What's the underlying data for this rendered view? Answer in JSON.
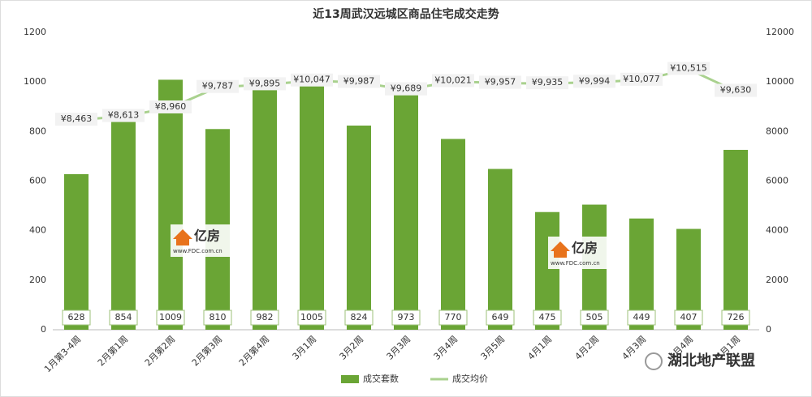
{
  "chart_data": {
    "type": "combo",
    "title": "近13周武汉远城区商品住宅成交走势",
    "categories": [
      "1月第3-4周",
      "2月第1周",
      "2月第2周",
      "2月第3周",
      "2月第4周",
      "3月1周",
      "3月2周",
      "3月3周",
      "3月4周",
      "3月5周",
      "4月1周",
      "4月2周",
      "4月3周",
      "4月4周",
      "5月1周"
    ],
    "series": [
      {
        "name": "成交套数",
        "type": "bar",
        "color": "#6aa535",
        "values": [
          628,
          854,
          1009,
          810,
          982,
          1005,
          824,
          973,
          770,
          649,
          475,
          505,
          449,
          407,
          726
        ]
      },
      {
        "name": "成交均价",
        "type": "line",
        "axis": "y2",
        "color": "#a9d18e",
        "values": [
          8463,
          8613,
          8960,
          9787,
          9895,
          10047,
          9987,
          9689,
          10021,
          9957,
          9935,
          9994,
          10077,
          10515,
          9630
        ],
        "value_labels": [
          "¥8,463",
          "¥8,613",
          "¥8,960",
          "¥9,787",
          "¥9,895",
          "¥10,047",
          "¥9,987",
          "¥9,689",
          "¥10,021",
          "¥9,957",
          "¥9,935",
          "¥9,994",
          "¥10,077",
          "¥10,515",
          "¥9,630"
        ]
      }
    ],
    "ylim": [
      0,
      1200
    ],
    "yticks": [
      0,
      200,
      400,
      600,
      800,
      1000,
      1200
    ],
    "y2lim": [
      0,
      12000
    ],
    "y2ticks": [
      0,
      2000,
      4000,
      6000,
      8000,
      10000,
      12000
    ],
    "grid": false,
    "legend": "bottom",
    "annotations": [
      "亿房",
      "www.FDC.com.cn",
      "湖北地产联盟"
    ]
  }
}
